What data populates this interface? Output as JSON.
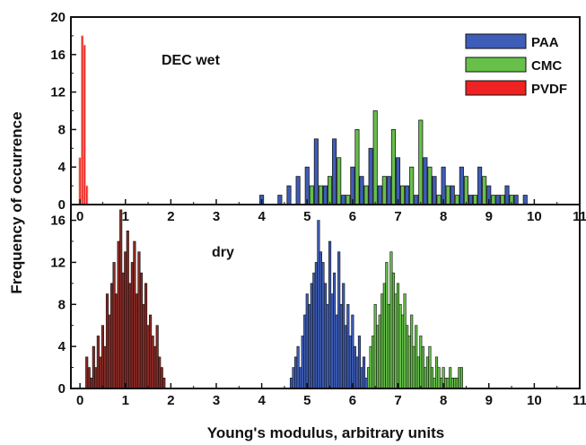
{
  "chart_data": {
    "type": "bar",
    "xlabel": "Young's modulus, arbitrary units",
    "ylabel": "Frequency of occurrence",
    "xlim": [
      -0.2,
      11
    ],
    "x_ticks": [
      0,
      1,
      2,
      3,
      4,
      5,
      6,
      7,
      8,
      9,
      10,
      11
    ],
    "bin_width": 0.1,
    "legend": {
      "position": "top-right",
      "entries": [
        {
          "name": "PAA",
          "color": "#3D5DB8"
        },
        {
          "name": "CMC",
          "color": "#66C04A"
        },
        {
          "name": "PVDF",
          "color": "#EE2222"
        }
      ]
    },
    "panels": [
      {
        "annotation": "DEC wet",
        "ylim": [
          0,
          20
        ],
        "y_ticks": [
          0,
          4,
          8,
          12,
          16,
          20
        ],
        "series": [
          {
            "name": "PAA",
            "color": "#3D5DB8",
            "x": [
              4.0,
              4.4,
              4.6,
              4.8,
              5.0,
              5.2,
              5.4,
              5.6,
              5.8,
              6.0,
              6.2,
              6.4,
              6.6,
              6.8,
              7.0,
              7.2,
              7.4,
              7.6,
              7.8,
              8.0,
              8.2,
              8.4,
              8.6,
              8.8,
              9.0,
              9.2,
              9.4,
              9.6,
              9.8
            ],
            "y": [
              1,
              1,
              2,
              3,
              4,
              7,
              2,
              7,
              1,
              4,
              3,
              6,
              2,
              3,
              5,
              2,
              1,
              5,
              3,
              4,
              2,
              4,
              1,
              4,
              2,
              1,
              2,
              1,
              1
            ]
          },
          {
            "name": "CMC",
            "color": "#66C04A",
            "x": [
              5.1,
              5.3,
              5.5,
              5.7,
              5.9,
              6.1,
              6.3,
              6.5,
              6.7,
              6.9,
              7.1,
              7.3,
              7.5,
              7.7,
              7.9,
              8.1,
              8.3,
              8.5,
              8.7,
              8.9,
              9.1,
              9.3,
              9.5
            ],
            "y": [
              2,
              2,
              3,
              5,
              1,
              8,
              2,
              10,
              3,
              8,
              2,
              4,
              9,
              4,
              1,
              2,
              1,
              3,
              1,
              3,
              1,
              1,
              1
            ]
          },
          {
            "name": "PVDF",
            "color": "#EE2222",
            "outline": "#F3A080",
            "x": [
              0.0,
              0.05,
              0.1,
              0.15
            ],
            "y": [
              5,
              18,
              17,
              2
            ]
          }
        ]
      },
      {
        "annotation": "dry",
        "ylim": [
          0,
          17.5
        ],
        "y_ticks": [
          0,
          4,
          8,
          12,
          16
        ],
        "series": [
          {
            "name": "PVDF",
            "color": "#8B2A25",
            "outline": "#111111",
            "x": [
              0.15,
              0.2,
              0.25,
              0.3,
              0.35,
              0.4,
              0.45,
              0.5,
              0.55,
              0.6,
              0.65,
              0.7,
              0.75,
              0.8,
              0.85,
              0.9,
              0.95,
              1.0,
              1.05,
              1.1,
              1.15,
              1.2,
              1.25,
              1.3,
              1.35,
              1.4,
              1.45,
              1.5,
              1.55,
              1.6,
              1.65,
              1.7,
              1.75,
              1.8,
              1.85
            ],
            "y": [
              3,
              2,
              1,
              4,
              2,
              5,
              3,
              6,
              4,
              9,
              7,
              10,
              12,
              9,
              14,
              17,
              11,
              13,
              15,
              10,
              12,
              14,
              9,
              13,
              11,
              8,
              10,
              6,
              7,
              5,
              4,
              6,
              3,
              2,
              1
            ]
          },
          {
            "name": "PAA",
            "color": "#3D5DB8",
            "outline": "#111111",
            "x": [
              4.65,
              4.7,
              4.75,
              4.8,
              4.85,
              4.9,
              4.95,
              5.0,
              5.05,
              5.1,
              5.15,
              5.2,
              5.25,
              5.3,
              5.35,
              5.4,
              5.45,
              5.5,
              5.55,
              5.6,
              5.65,
              5.7,
              5.75,
              5.8,
              5.85,
              5.9,
              5.95,
              6.0,
              6.05,
              6.1,
              6.15,
              6.2,
              6.25,
              6.3,
              6.35
            ],
            "y": [
              1,
              2,
              3,
              4,
              2,
              5,
              7,
              9,
              8,
              10,
              11,
              12,
              16,
              13,
              12,
              10,
              8,
              14,
              9,
              11,
              7,
              13,
              8,
              10,
              6,
              8,
              5,
              7,
              4,
              3,
              5,
              2,
              3,
              1,
              1
            ]
          },
          {
            "name": "CMC",
            "color": "#66C04A",
            "outline": "#111111",
            "x": [
              6.35,
              6.4,
              6.45,
              6.5,
              6.55,
              6.6,
              6.65,
              6.7,
              6.75,
              6.8,
              6.85,
              6.9,
              6.95,
              7.0,
              7.05,
              7.1,
              7.15,
              7.2,
              7.25,
              7.3,
              7.35,
              7.4,
              7.45,
              7.5,
              7.55,
              7.6,
              7.65,
              7.7,
              7.75,
              7.8,
              7.85,
              7.9,
              7.95,
              8.0,
              8.05,
              8.1,
              8.15,
              8.2,
              8.25,
              8.3,
              8.35,
              8.4
            ],
            "y": [
              2,
              4,
              5,
              8,
              6,
              7,
              9,
              10,
              12,
              8,
              13,
              11,
              9,
              10,
              8,
              7,
              9,
              6,
              5,
              7,
              4,
              6,
              3,
              5,
              4,
              2,
              3,
              4,
              2,
              1,
              3,
              2,
              1,
              2,
              1,
              1,
              2,
              1,
              1,
              1,
              2,
              2
            ]
          }
        ]
      }
    ]
  }
}
